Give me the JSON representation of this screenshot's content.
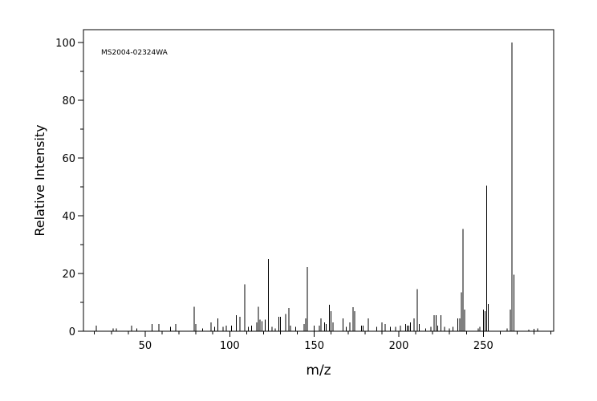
{
  "chart_data": {
    "type": "stem",
    "annotation": "MS2004-02324WA",
    "xlabel": "m/z",
    "ylabel": "Relative Intensity",
    "color": "#000000",
    "x": [
      21,
      31,
      33,
      42,
      45,
      54,
      58,
      65,
      68,
      79,
      80,
      84,
      89,
      91,
      93,
      96,
      98,
      101,
      104,
      106,
      109,
      111,
      113,
      116,
      117,
      118,
      119,
      121,
      123,
      125,
      127,
      129,
      130,
      133,
      135,
      136,
      139,
      144,
      145,
      146,
      150,
      153,
      154,
      156,
      157,
      159,
      160,
      161,
      167,
      169,
      171,
      173,
      174,
      178,
      179,
      182,
      187,
      190,
      192,
      195,
      198,
      201,
      204,
      205,
      206,
      207,
      209,
      211,
      212,
      216,
      219,
      221,
      222,
      223,
      225,
      227,
      230,
      232,
      235,
      236,
      237,
      238,
      239,
      247,
      248,
      250,
      251,
      252,
      253,
      264,
      266,
      267,
      268,
      277,
      280,
      282
    ],
    "values": [
      2,
      1,
      1,
      2,
      1,
      2.5,
      2.5,
      1.5,
      2.5,
      8.5,
      2.5,
      1,
      3,
      1.5,
      4.5,
      1.5,
      2,
      2,
      5.5,
      5,
      16.3,
      1.5,
      2,
      3,
      8.5,
      4,
      3.5,
      4,
      25,
      1.5,
      1,
      5,
      5,
      6,
      8,
      2,
      1.5,
      2.5,
      4.5,
      22.2,
      2,
      2,
      4.5,
      3,
      2.5,
      9.2,
      7,
      3,
      4.5,
      1.5,
      3,
      8.3,
      7,
      2,
      2,
      4.5,
      1.5,
      3,
      2.5,
      1.5,
      1.5,
      2,
      2.5,
      2,
      2,
      3,
      4.5,
      14.6,
      2.5,
      1,
      1.5,
      5.5,
      5.5,
      2,
      5.5,
      1.5,
      1,
      1.5,
      4.5,
      4.5,
      13.5,
      35.4,
      7.5,
      1,
      1.5,
      7.5,
      7,
      50.4,
      9.5,
      1,
      7.5,
      100,
      19.6,
      0.5,
      0.8,
      1
    ],
    "xlim": [
      13.5,
      291.6
    ],
    "ylim": [
      0,
      104.4
    ],
    "xticks": [
      50,
      100,
      150,
      200,
      250
    ],
    "yticks": [
      0,
      20,
      40,
      60,
      80,
      100
    ],
    "xminorticks": [
      20,
      30,
      40,
      60,
      70,
      80,
      90,
      110,
      120,
      130,
      140,
      160,
      170,
      180,
      190,
      210,
      220,
      230,
      240,
      260,
      270,
      280,
      290
    ],
    "yminorticks": [
      10,
      30,
      50,
      70,
      90
    ]
  }
}
